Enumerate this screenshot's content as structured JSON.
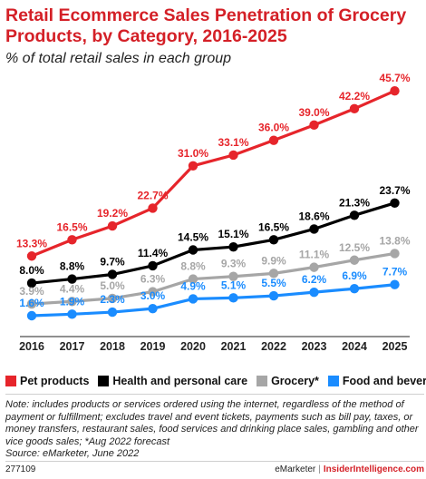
{
  "header": {
    "title": "Retail Ecommerce Sales Penetration of Grocery Products, by Category, 2016-2025",
    "subtitle": "% of total retail sales in each group"
  },
  "chart_data": {
    "type": "line",
    "categories": [
      "2016",
      "2017",
      "2018",
      "2019",
      "2020",
      "2021",
      "2022",
      "2023",
      "2024",
      "2025"
    ],
    "ylim": [
      0,
      50
    ],
    "grid": false,
    "legend_placement": "bottom",
    "series": [
      {
        "name": "Pet products",
        "color": "#e6252b",
        "values": [
          13.3,
          16.5,
          19.2,
          22.7,
          31.0,
          33.1,
          36.0,
          39.0,
          42.2,
          45.7
        ],
        "labels": [
          "13.3%",
          "16.5%",
          "19.2%",
          "22.7%",
          "31.0%",
          "33.1%",
          "36.0%",
          "39.0%",
          "42.2%",
          "45.7%"
        ]
      },
      {
        "name": "Health and personal care",
        "color": "#000000",
        "values": [
          8.0,
          8.8,
          9.7,
          11.4,
          14.5,
          15.1,
          16.5,
          18.6,
          21.3,
          23.7
        ],
        "labels": [
          "8.0%",
          "8.8%",
          "9.7%",
          "11.4%",
          "14.5%",
          "15.1%",
          "16.5%",
          "18.6%",
          "21.3%",
          "23.7%"
        ]
      },
      {
        "name": "Grocery*",
        "color": "#a6a6a6",
        "values": [
          3.9,
          4.4,
          5.0,
          6.3,
          8.8,
          9.3,
          9.9,
          11.1,
          12.5,
          13.8
        ],
        "labels": [
          "3.9%",
          "4.4%",
          "5.0%",
          "6.3%",
          "8.8%",
          "9.3%",
          "9.9%",
          "11.1%",
          "12.5%",
          "13.8%"
        ]
      },
      {
        "name": "Food and beverage",
        "color": "#1a8cff",
        "values": [
          1.6,
          1.9,
          2.3,
          3.0,
          4.9,
          5.1,
          5.5,
          6.2,
          6.9,
          7.7
        ],
        "labels": [
          "1.6%",
          "1.9%",
          "2.3%",
          "3.0%",
          "4.9%",
          "5.1%",
          "5.5%",
          "6.2%",
          "6.9%",
          "7.7%"
        ]
      }
    ]
  },
  "note": "Note: includes products or services ordered using the internet, regardless of the method of payment or fulfillment; excludes travel and event tickets, payments such as bill pay, taxes, or money transfers, restaurant sales, food services and drinking place sales, gambling and other vice goods sales; *Aug 2022 forecast",
  "source": "Source: eMarketer, June 2022",
  "footer": {
    "figure_id": "277109",
    "brand_left": "eMarketer",
    "brand_sep": "|",
    "brand_right": "InsiderIntelligence.com"
  }
}
